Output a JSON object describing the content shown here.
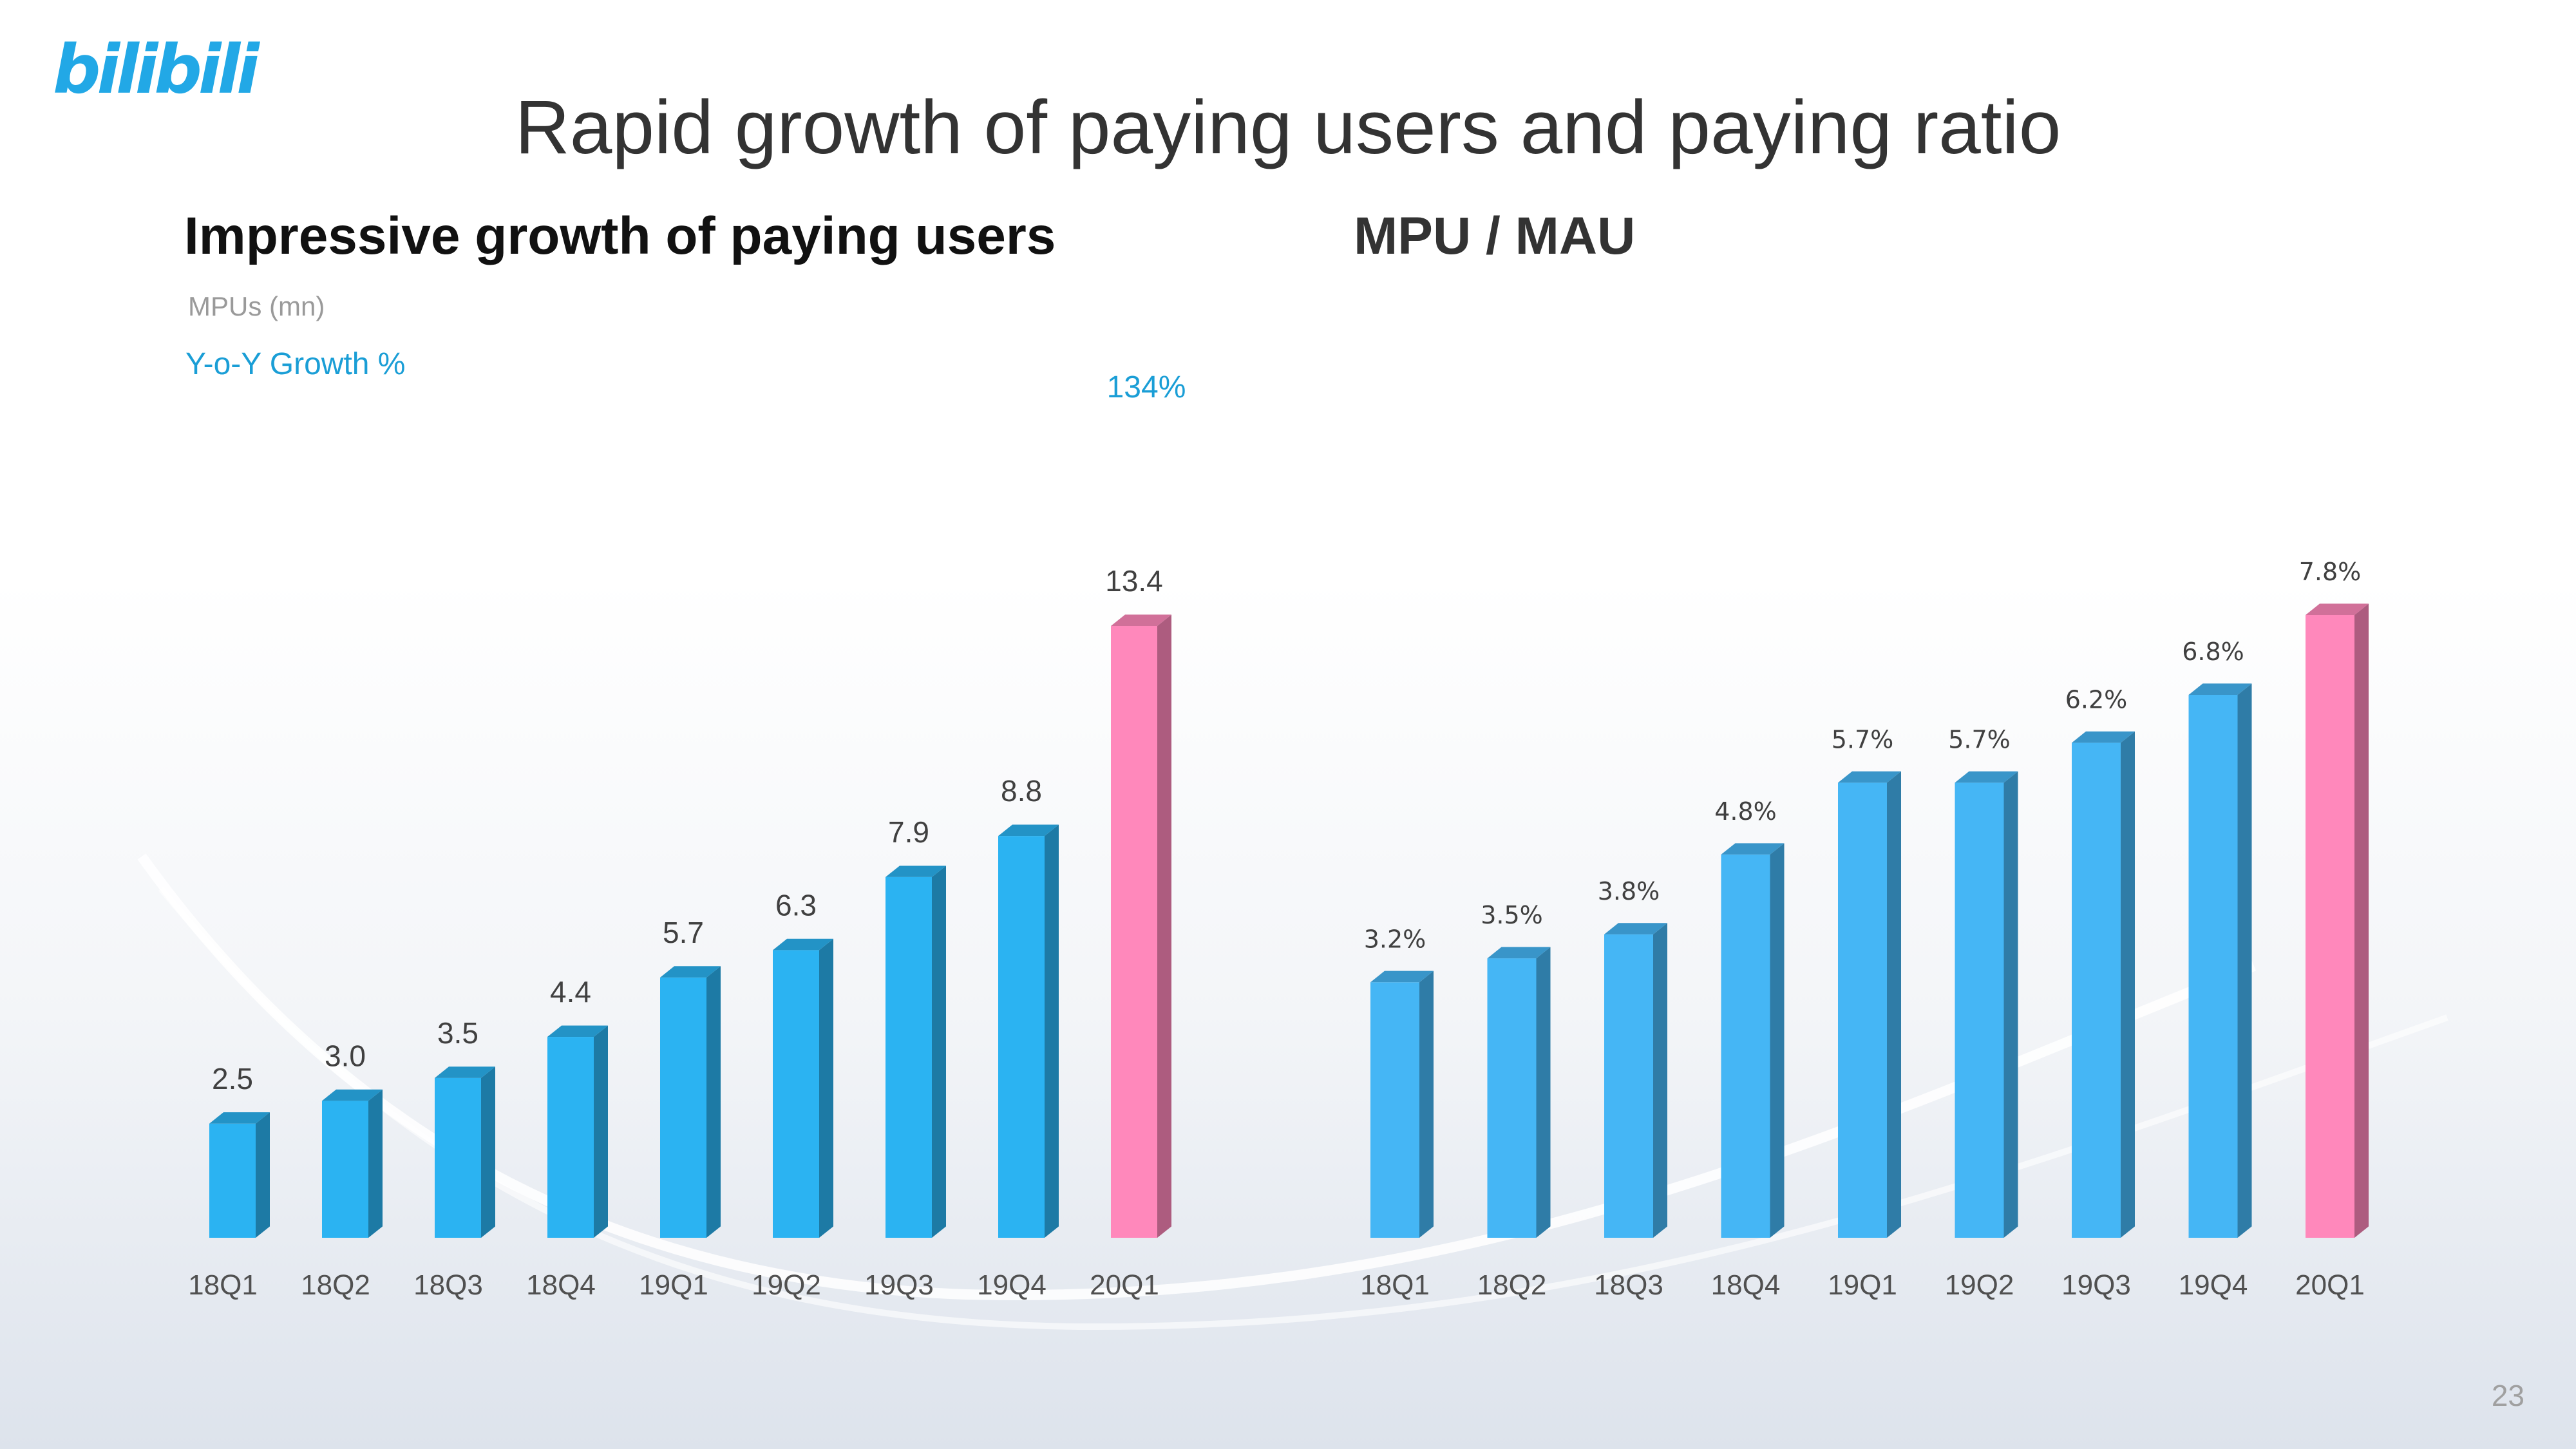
{
  "logo_text": "bilibili",
  "title": "Rapid growth of paying users and paying ratio",
  "page_number": "23",
  "colors": {
    "bar": "#2bb3f2",
    "bar_right": "#45b6f5",
    "highlight": "#ff88bb",
    "growth": "#1a9ed6"
  },
  "left_chart": {
    "subtitle": "Impressive growth of paying users",
    "unit_label": "MPUs (mn)",
    "growth_label": "Y-o-Y Growth %",
    "growth_value": "134%",
    "chart_data": {
      "type": "bar",
      "title": "Impressive growth of paying users",
      "ylabel": "MPUs (mn)",
      "categories": [
        "18Q1",
        "18Q2",
        "18Q3",
        "18Q4",
        "19Q1",
        "19Q2",
        "19Q3",
        "19Q4",
        "20Q1"
      ],
      "values": [
        2.5,
        3.0,
        3.5,
        4.4,
        5.7,
        6.3,
        7.9,
        8.8,
        13.4
      ],
      "labels": [
        "2.5",
        "3.0",
        "3.5",
        "4.4",
        "5.7",
        "6.3",
        "7.9",
        "8.8",
        "13.4"
      ],
      "highlight_index": 8,
      "ylim": [
        0,
        13.4
      ]
    }
  },
  "right_chart": {
    "subtitle": "MPU / MAU",
    "chart_data": {
      "type": "bar",
      "title": "MPU / MAU",
      "categories": [
        "18Q1",
        "18Q2",
        "18Q3",
        "18Q4",
        "19Q1",
        "19Q2",
        "19Q3",
        "19Q4",
        "20Q1"
      ],
      "values": [
        3.2,
        3.5,
        3.8,
        4.8,
        5.7,
        5.7,
        6.2,
        6.8,
        7.8
      ],
      "labels": [
        "3.2%",
        "3.5%",
        "3.8%",
        "4.8%",
        "5.7%",
        "5.7%",
        "6.2%",
        "6.8%",
        "7.8%"
      ],
      "highlight_index": 8,
      "ylim": [
        0,
        7.8
      ]
    }
  }
}
